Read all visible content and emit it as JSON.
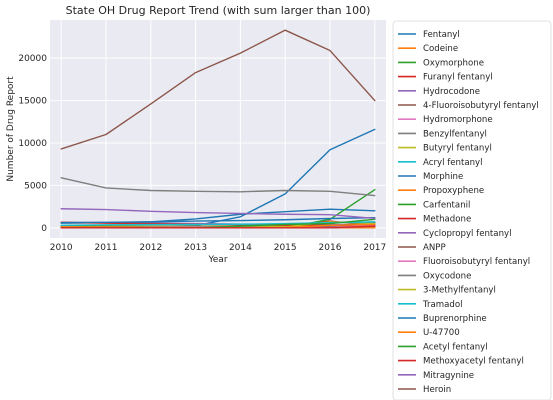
{
  "chart_data": {
    "type": "line",
    "title": "State OH Drug Report Trend (with sum larger than 100)",
    "xlabel": "Year",
    "ylabel": "Number of Drug Report",
    "x": [
      2010,
      2011,
      2012,
      2013,
      2014,
      2015,
      2016,
      2017
    ],
    "xlim": [
      2009.75,
      2017.25
    ],
    "ylim": [
      -1200,
      24500
    ],
    "yticks": [
      0,
      5000,
      10000,
      15000,
      20000
    ],
    "grid": true,
    "legend_position": "outside-right",
    "series": [
      {
        "name": "Fentanyl",
        "color": "#1f77b4",
        "values": [
          80,
          100,
          150,
          250,
          1300,
          4000,
          9200,
          11600
        ]
      },
      {
        "name": "Codeine",
        "color": "#ff7f0e",
        "values": [
          200,
          190,
          180,
          170,
          160,
          150,
          140,
          130
        ]
      },
      {
        "name": "Oxymorphone",
        "color": "#2ca02c",
        "values": [
          200,
          180,
          170,
          160,
          140,
          130,
          120,
          110
        ]
      },
      {
        "name": "Furanyl fentanyl",
        "color": "#d62728",
        "values": [
          0,
          0,
          0,
          0,
          0,
          100,
          800,
          250
        ]
      },
      {
        "name": "Hydrocodone",
        "color": "#9467bd",
        "values": [
          650,
          620,
          560,
          500,
          440,
          400,
          380,
          360
        ]
      },
      {
        "name": "4-Fluoroisobutyryl fentanyl",
        "color": "#8c564b",
        "values": [
          0,
          0,
          0,
          0,
          0,
          0,
          100,
          300
        ]
      },
      {
        "name": "Hydromorphone",
        "color": "#e377c2",
        "values": [
          80,
          90,
          100,
          110,
          120,
          140,
          160,
          150
        ]
      },
      {
        "name": "Benzylfentanyl",
        "color": "#7f7f7f",
        "values": [
          0,
          0,
          0,
          0,
          0,
          0,
          50,
          150
        ]
      },
      {
        "name": "Butyryl fentanyl",
        "color": "#bcbd22",
        "values": [
          0,
          0,
          0,
          0,
          50,
          200,
          250,
          100
        ]
      },
      {
        "name": "Acryl fentanyl",
        "color": "#17becf",
        "values": [
          0,
          0,
          0,
          0,
          0,
          0,
          200,
          600
        ]
      },
      {
        "name": "Morphine",
        "color": "#1f77b4",
        "values": [
          550,
          600,
          700,
          1050,
          1600,
          1900,
          2200,
          2000
        ]
      },
      {
        "name": "Propoxyphene",
        "color": "#ff7f0e",
        "values": [
          120,
          100,
          60,
          30,
          10,
          0,
          0,
          0
        ]
      },
      {
        "name": "Carfentanil",
        "color": "#2ca02c",
        "values": [
          0,
          0,
          0,
          0,
          0,
          0,
          1000,
          4500
        ]
      },
      {
        "name": "Methadone",
        "color": "#d62728",
        "values": [
          650,
          550,
          480,
          420,
          350,
          310,
          300,
          300
        ]
      },
      {
        "name": "Cyclopropyl fentanyl",
        "color": "#9467bd",
        "values": [
          0,
          0,
          0,
          0,
          0,
          0,
          0,
          200
        ]
      },
      {
        "name": "ANPP",
        "color": "#8c564b",
        "values": [
          0,
          0,
          0,
          0,
          20,
          80,
          200,
          600
        ]
      },
      {
        "name": "Fluoroisobutyryl fentanyl",
        "color": "#e377c2",
        "values": [
          0,
          0,
          0,
          0,
          0,
          0,
          50,
          300
        ]
      },
      {
        "name": "Oxycodone",
        "color": "#7f7f7f",
        "values": [
          5900,
          4700,
          4400,
          4300,
          4250,
          4400,
          4300,
          3800
        ]
      },
      {
        "name": "3-Methylfentanyl",
        "color": "#bcbd22",
        "values": [
          0,
          0,
          0,
          0,
          0,
          100,
          700,
          500
        ]
      },
      {
        "name": "Tramadol",
        "color": "#17becf",
        "values": [
          300,
          350,
          380,
          400,
          420,
          500,
          600,
          700
        ]
      },
      {
        "name": "Buprenorphine",
        "color": "#1f77b4",
        "values": [
          600,
          650,
          700,
          800,
          850,
          950,
          1100,
          1200
        ]
      },
      {
        "name": "U-47700",
        "color": "#ff7f0e",
        "values": [
          0,
          0,
          0,
          0,
          0,
          50,
          300,
          400
        ]
      },
      {
        "name": "Acetyl fentanyl",
        "color": "#2ca02c",
        "values": [
          0,
          0,
          0,
          0,
          200,
          400,
          500,
          1000
        ]
      },
      {
        "name": "Methoxyacetyl fentanyl",
        "color": "#d62728",
        "values": [
          0,
          0,
          0,
          0,
          0,
          0,
          0,
          200
        ]
      },
      {
        "name": "Mitragynine",
        "color": "#9467bd",
        "values": [
          2250,
          2150,
          1950,
          1800,
          1700,
          1600,
          1550,
          1100
        ]
      },
      {
        "name": "Heroin",
        "color": "#8c564b",
        "values": [
          9300,
          11000,
          14600,
          18300,
          20600,
          23300,
          20900,
          15000
        ]
      }
    ]
  }
}
